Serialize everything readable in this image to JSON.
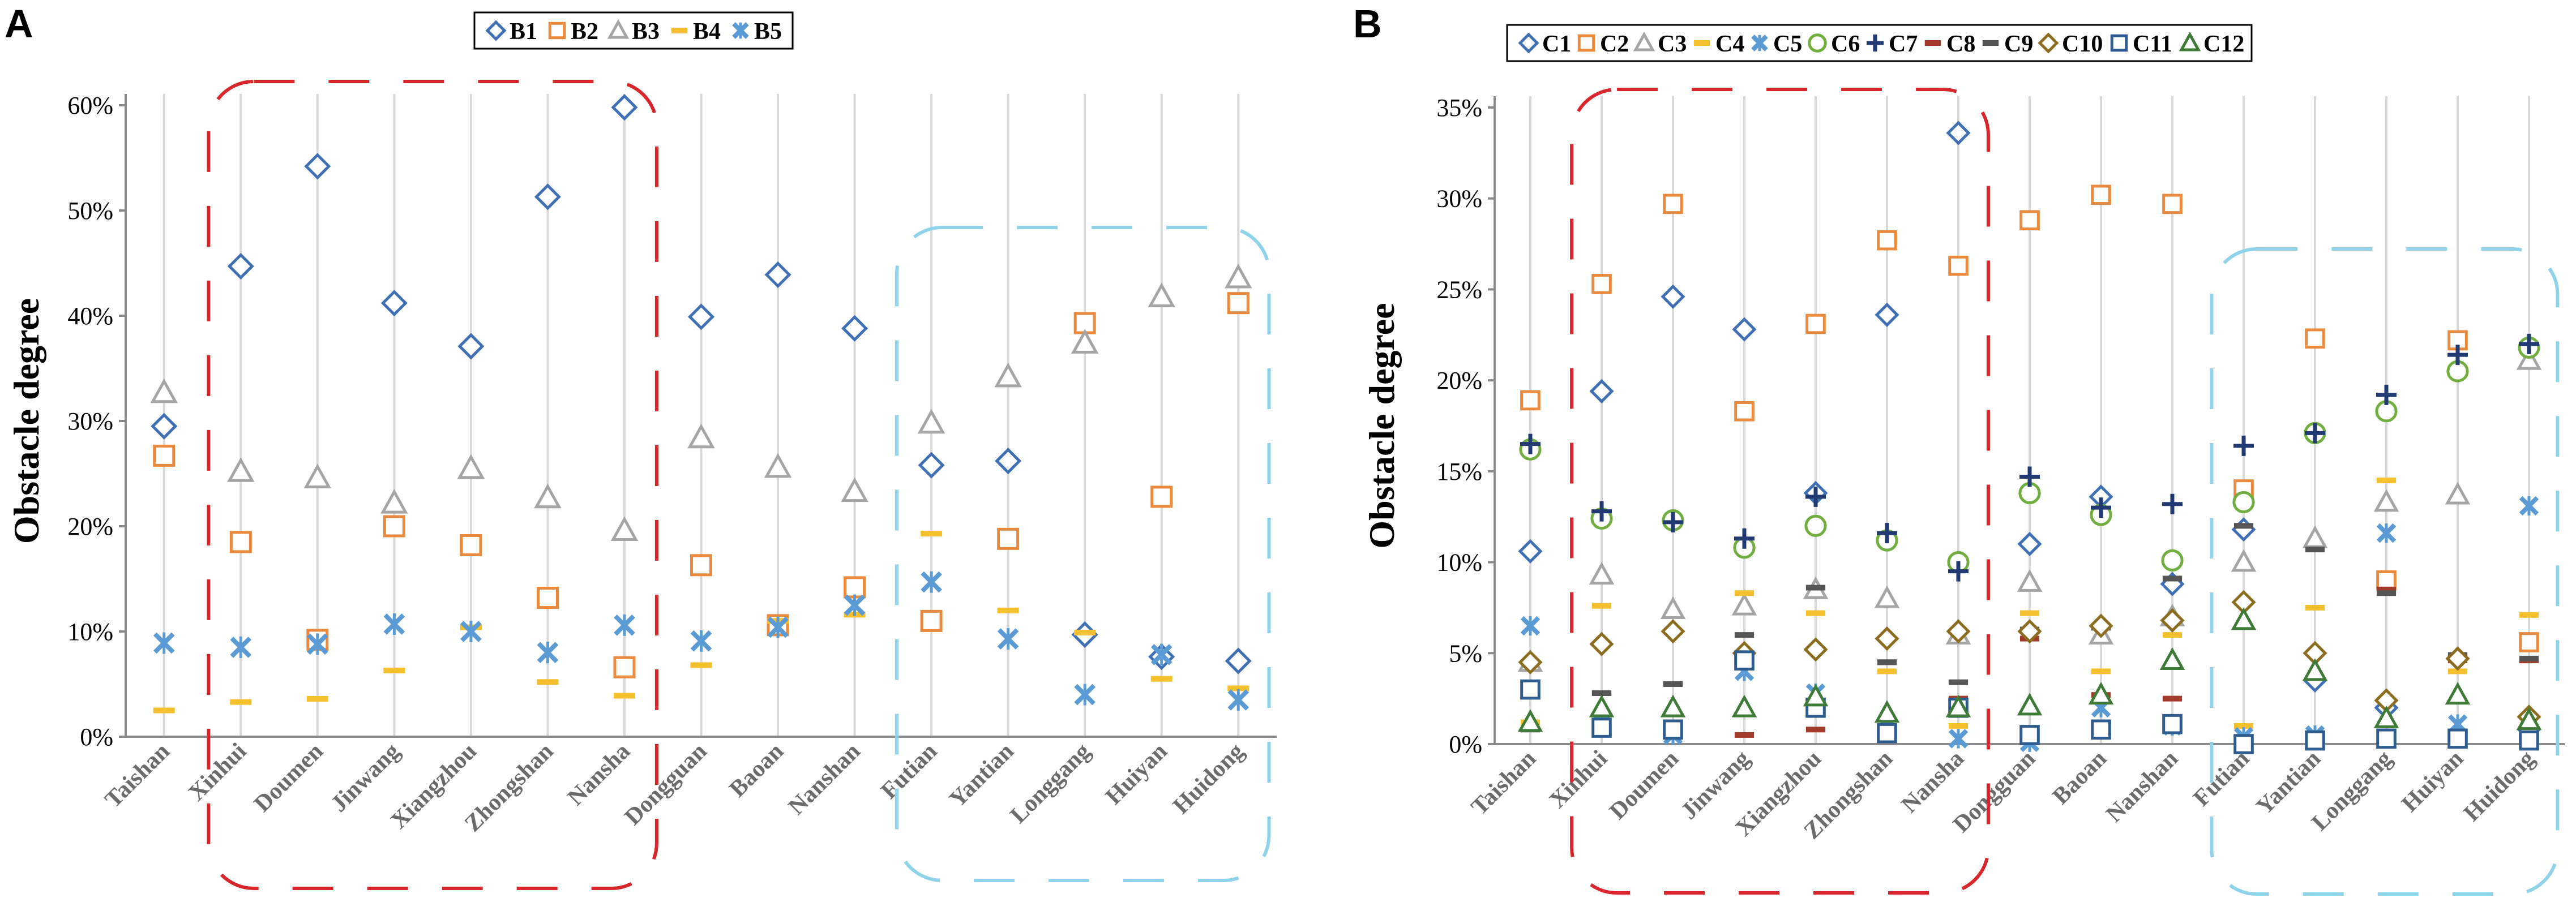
{
  "colors": {
    "blue": "#3F6FB5",
    "orange": "#E98A3E",
    "gray": "#A5A5A5",
    "yellow": "#F5C02E",
    "lightblue": "#5A9BD5",
    "green": "#6FAE3F",
    "navy": "#223A73",
    "darkred": "#A23B2A",
    "darkgray": "#555555",
    "brown": "#8C6D1F",
    "darkblue": "#2E5C8F",
    "darkgreen": "#3E7B37",
    "red_box": "#D9262B",
    "cyan_box": "#8FD3EA"
  },
  "chart_data": [
    {
      "panel": "A",
      "type": "scatter",
      "ylabel": "Obstacle degree",
      "ylim": [
        0,
        0.6
      ],
      "yticks": [
        "0%",
        "10%",
        "20%",
        "30%",
        "40%",
        "50%",
        "60%"
      ],
      "categories": [
        "Taishan",
        "Xinhui",
        "Doumen",
        "Jinwang",
        "Xiangzhou",
        "Zhongshan",
        "Nansha",
        "Dongguan",
        "Baoan",
        "Nanshan",
        "Futian",
        "Yantian",
        "Longgang",
        "Huiyan",
        "Huidong"
      ],
      "series": [
        {
          "name": "B1",
          "marker": "diamond",
          "color": "blue",
          "values": [
            0.295,
            0.447,
            0.542,
            0.412,
            0.371,
            0.513,
            0.598,
            0.399,
            0.439,
            0.388,
            0.258,
            0.262,
            0.097,
            0.076,
            0.072
          ]
        },
        {
          "name": "B2",
          "marker": "square",
          "color": "orange",
          "values": [
            0.267,
            0.185,
            0.092,
            0.2,
            0.182,
            0.132,
            0.066,
            0.163,
            0.106,
            0.142,
            0.11,
            0.188,
            0.393,
            0.228,
            0.412
          ]
        },
        {
          "name": "B3",
          "marker": "triangle",
          "color": "gray",
          "values": [
            0.327,
            0.252,
            0.246,
            0.222,
            0.255,
            0.227,
            0.196,
            0.284,
            0.256,
            0.233,
            0.298,
            0.342,
            0.374,
            0.418,
            0.436
          ]
        },
        {
          "name": "B4",
          "marker": "dash",
          "color": "yellow",
          "values": [
            0.025,
            0.033,
            0.036,
            0.063,
            0.104,
            0.052,
            0.039,
            0.068,
            0.11,
            0.116,
            0.193,
            0.12,
            0.099,
            0.055,
            0.046
          ]
        },
        {
          "name": "B5",
          "marker": "star",
          "color": "lightblue",
          "values": [
            0.089,
            0.085,
            0.088,
            0.107,
            0.1,
            0.08,
            0.106,
            0.091,
            0.104,
            0.125,
            0.147,
            0.093,
            0.04,
            0.078,
            0.035
          ]
        }
      ]
    },
    {
      "panel": "B",
      "type": "scatter",
      "ylabel": "Obstacle degree",
      "ylim": [
        0,
        0.35
      ],
      "yticks": [
        "0%",
        "5%",
        "10%",
        "15%",
        "20%",
        "25%",
        "30%",
        "35%"
      ],
      "categories": [
        "Taishan",
        "Xinhui",
        "Doumen",
        "Jinwang",
        "Xiangzhou",
        "Zhongshan",
        "Nansha",
        "Dongguan",
        "Baoan",
        "Nanshan",
        "Futian",
        "Yantian",
        "Longgang",
        "Huiyan",
        "Huidong"
      ],
      "series": [
        {
          "name": "C1",
          "marker": "diamond",
          "color": "blue",
          "values": [
            0.106,
            0.194,
            0.246,
            0.228,
            0.138,
            0.236,
            0.336,
            0.11,
            0.136,
            0.088,
            0.118,
            0.035,
            0.02,
            0.047,
            0.008
          ]
        },
        {
          "name": "C2",
          "marker": "square",
          "color": "orange",
          "values": [
            0.189,
            0.253,
            0.297,
            0.183,
            0.231,
            0.277,
            0.263,
            0.288,
            0.302,
            0.297,
            0.14,
            0.223,
            0.09,
            0.222,
            0.056
          ]
        },
        {
          "name": "C3",
          "marker": "triangle",
          "color": "gray",
          "values": [
            0.045,
            0.093,
            0.074,
            0.076,
            0.085,
            0.08,
            0.06,
            0.089,
            0.06,
            0.07,
            0.1,
            0.113,
            0.133,
            0.137,
            0.211
          ]
        },
        {
          "name": "C4",
          "marker": "dash",
          "color": "yellow",
          "values": [
            0.012,
            0.076,
            0.01,
            0.083,
            0.072,
            0.04,
            0.01,
            0.072,
            0.04,
            0.06,
            0.01,
            0.075,
            0.145,
            0.04,
            0.071
          ]
        },
        {
          "name": "C5",
          "marker": "star",
          "color": "lightblue",
          "values": [
            0.065,
            0.012,
            0.005,
            0.04,
            0.028,
            0.01,
            0.003,
            0.001,
            0.02,
            0.01,
            0.004,
            0.005,
            0.116,
            0.011,
            0.131
          ]
        },
        {
          "name": "C6",
          "marker": "circle",
          "color": "green",
          "values": [
            0.162,
            0.124,
            0.123,
            0.108,
            0.12,
            0.112,
            0.1,
            0.138,
            0.126,
            0.101,
            0.133,
            0.171,
            0.183,
            0.205,
            0.218
          ]
        },
        {
          "name": "C7",
          "marker": "plus",
          "color": "navy",
          "values": [
            0.165,
            0.128,
            0.122,
            0.113,
            0.136,
            0.116,
            0.095,
            0.147,
            0.13,
            0.132,
            0.164,
            0.171,
            0.192,
            0.214,
            0.22
          ]
        },
        {
          "name": "C8",
          "marker": "dash",
          "color": "darkred",
          "values": [
            0.03,
            0.028,
            0.033,
            0.005,
            0.008,
            0.045,
            0.025,
            0.058,
            0.027,
            0.025,
            0.002,
            0.001,
            0.085,
            0.046,
            0.046
          ]
        },
        {
          "name": "C9",
          "marker": "dash",
          "color": "darkgray",
          "values": [
            0.008,
            0.028,
            0.033,
            0.06,
            0.086,
            0.045,
            0.034,
            0.063,
            0.064,
            0.091,
            0.12,
            0.107,
            0.083,
            0.049,
            0.047
          ]
        },
        {
          "name": "C10",
          "marker": "diamond",
          "color": "brown",
          "values": [
            0.045,
            0.055,
            0.062,
            0.05,
            0.052,
            0.058,
            0.062,
            0.062,
            0.065,
            0.068,
            0.078,
            0.05,
            0.024,
            0.047,
            0.015
          ]
        },
        {
          "name": "C11",
          "marker": "square",
          "color": "darkblue",
          "values": [
            0.03,
            0.009,
            0.008,
            0.046,
            0.02,
            0.006,
            0.02,
            0.005,
            0.008,
            0.011,
            0.0,
            0.002,
            0.003,
            0.003,
            0.002
          ]
        },
        {
          "name": "C12",
          "marker": "triangle",
          "color": "darkgreen",
          "values": [
            0.012,
            0.02,
            0.02,
            0.02,
            0.026,
            0.017,
            0.02,
            0.021,
            0.027,
            0.046,
            0.068,
            0.04,
            0.014,
            0.027,
            0.013
          ]
        }
      ]
    }
  ]
}
